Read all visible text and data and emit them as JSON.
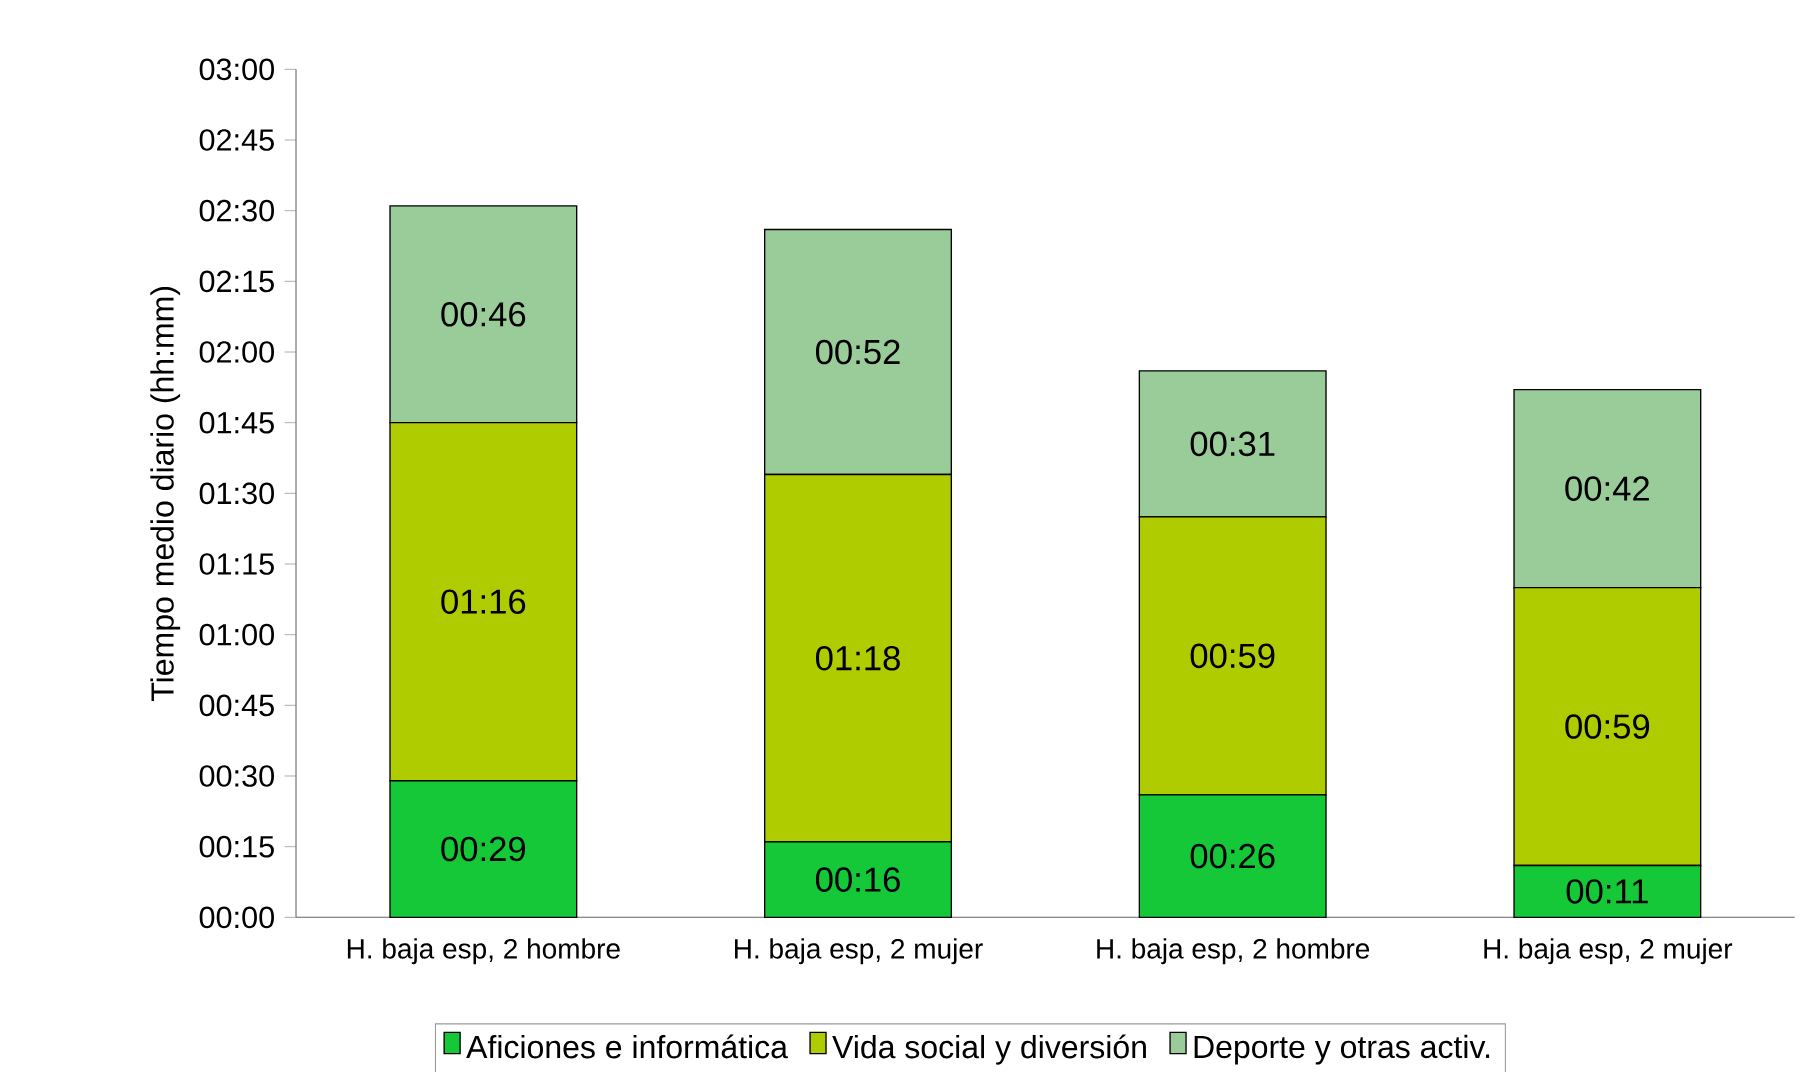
{
  "chart_data": {
    "type": "bar",
    "stacked": true,
    "ylabel": "Tiempo medio diario (hh:mm)",
    "categories": [
      "H. baja esp, 2 hombre",
      "H. baja esp, 2 mujer",
      "H. baja esp, 2 hombre",
      "H. baja esp, 2 mujer"
    ],
    "series": [
      {
        "name": "Aficiones e informática",
        "color": "#14c837",
        "values": [
          29,
          16,
          26,
          11
        ],
        "value_labels": [
          "00:29",
          "00:16",
          "00:26",
          "00:11"
        ]
      },
      {
        "name": "Vida social y diversión",
        "color": "#afcc00",
        "values": [
          76,
          78,
          59,
          59
        ],
        "value_labels": [
          "01:16",
          "01:18",
          "00:59",
          "00:59"
        ]
      },
      {
        "name": "Deporte y otras activ.",
        "color": "#99cc99",
        "values": [
          46,
          52,
          31,
          42
        ],
        "value_labels": [
          "00:46",
          "00:52",
          "00:31",
          "00:42"
        ]
      }
    ],
    "ylim": [
      0,
      180
    ],
    "yticks": [
      {
        "value": 0,
        "label": "00:00"
      },
      {
        "value": 15,
        "label": "00:15"
      },
      {
        "value": 30,
        "label": "00:30"
      },
      {
        "value": 45,
        "label": "00:45"
      },
      {
        "value": 60,
        "label": "01:00"
      },
      {
        "value": 75,
        "label": "01:15"
      },
      {
        "value": 90,
        "label": "01:30"
      },
      {
        "value": 105,
        "label": "01:45"
      },
      {
        "value": 120,
        "label": "02:00"
      },
      {
        "value": 135,
        "label": "02:15"
      },
      {
        "value": 150,
        "label": "02:30"
      },
      {
        "value": 165,
        "label": "02:45"
      },
      {
        "value": 180,
        "label": "03:00"
      }
    ],
    "legend": "bottom"
  }
}
